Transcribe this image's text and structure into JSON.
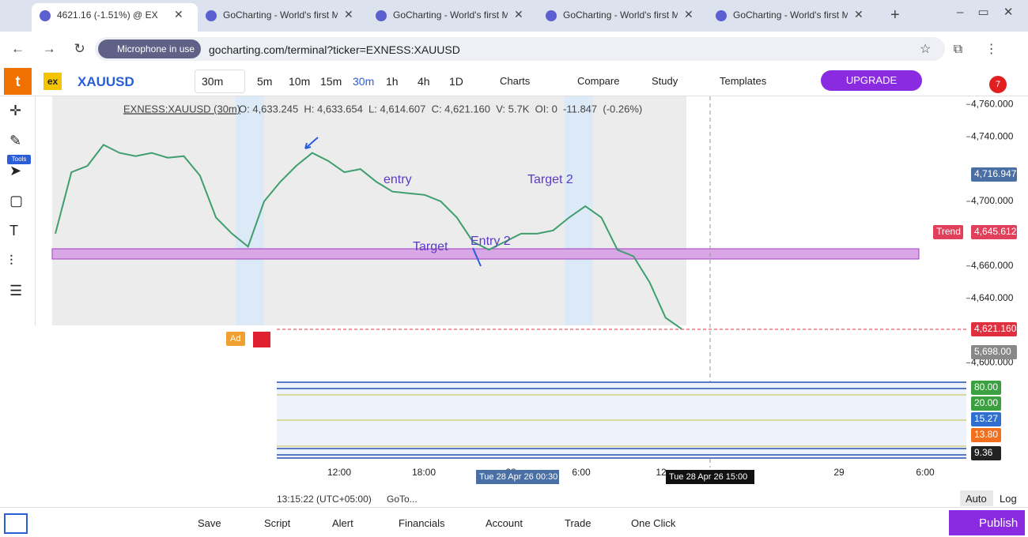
{
  "browser": {
    "tabs": [
      "4621.16 (-1.51%) @ EX",
      "GoCharting - World's first M",
      "GoCharting - World's first M",
      "GoCharting - World's first M",
      "GoCharting - World's first M"
    ],
    "mic": "Microphone in use",
    "url": "gocharting.com/terminal?ticker=EXNESS:XAUUSD"
  },
  "toolbar": {
    "logo": "t",
    "exchange": "ex",
    "symbol": "XAUUSD",
    "interval": "30m",
    "intervals": [
      "5m",
      "10m",
      "15m",
      "30m",
      "1h",
      "4h",
      "1D"
    ],
    "buttons": [
      "Charts",
      "Compare",
      "Study",
      "Templates"
    ],
    "upgrade": "UPGRADE",
    "badge": "7"
  },
  "left_tools": {
    "tools_label": "Tools"
  },
  "legend": {
    "symbol": "EXNESS:XAUUSD (30m)",
    "ohlc": "O: 4,633.245  H: 4,633.654  L: 4,614.607  C: 4,621.160  V: 5.7K  OI: 0  -11.847  (-0.26%)"
  },
  "chart_data": {
    "type": "line",
    "values": [
      4680,
      4718,
      4722,
      4735,
      4730,
      4728,
      4730,
      4727,
      4728,
      4716,
      4690,
      4680,
      4672,
      4700,
      4712,
      4722,
      4730,
      4725,
      4718,
      4720,
      4712,
      4706,
      4705,
      4704,
      4700,
      4690,
      4675,
      4670,
      4675,
      4680,
      4680,
      4682,
      4690,
      4697,
      4690,
      4670,
      4666,
      4650,
      4628,
      4621
    ],
    "color": "#3f9e6e",
    "ylim": [
      4590,
      4765
    ],
    "yticks": [
      {
        "value": 4760,
        "label": "4,760.000"
      },
      {
        "value": 4740,
        "label": "4,740.000"
      },
      {
        "value": 4700,
        "label": "4,700.000"
      },
      {
        "value": 4660,
        "label": "4,660.000"
      },
      {
        "value": 4640,
        "label": "4,640.000"
      },
      {
        "value": 4600,
        "label": "4,600.000"
      }
    ],
    "annotations": [
      "entry",
      "Target 2",
      "Target",
      "Entry 2"
    ],
    "x_axis_labels": [
      "12:00",
      "18:00",
      "28",
      "6:00",
      "12",
      "29",
      "6:00"
    ]
  },
  "price_labels": {
    "high": "4,716.947",
    "trend_name": "Trend",
    "trend": "4,645.612",
    "last": "4,621.160",
    "volume": "5,698.00"
  },
  "oscillator_labels": [
    "80.00",
    "20.00",
    "15.27",
    "13.80",
    "9.36"
  ],
  "crosshair": {
    "x_left": "Tue 28 Apr 26 00:30",
    "x_right": "Tue 28 Apr 26 15:00"
  },
  "ad": "Ad",
  "status": {
    "time": "13:15:22 (UTC+05:00)",
    "goto": "GoTo...",
    "auto": "Auto",
    "log": "Log"
  },
  "bottom_bar": {
    "items": [
      "Save",
      "Script",
      "Alert",
      "Financials",
      "Account",
      "Trade",
      "One Click"
    ],
    "publish": "Publish"
  }
}
